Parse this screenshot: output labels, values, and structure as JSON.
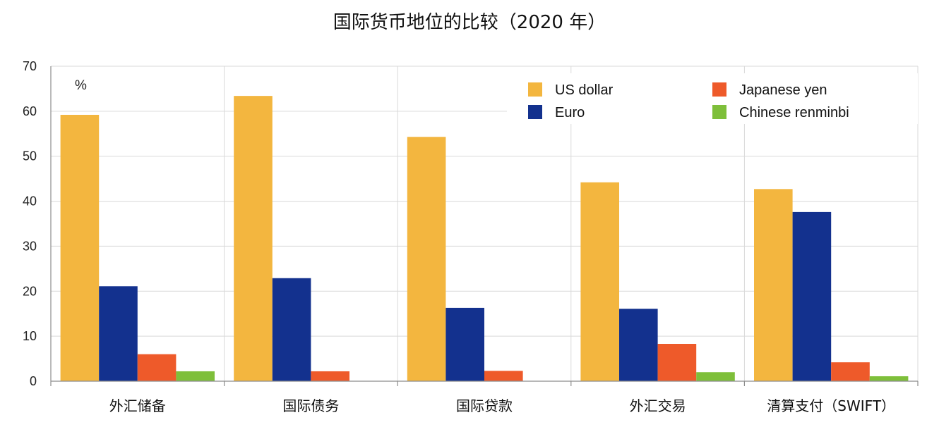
{
  "chart_data": {
    "type": "bar",
    "title": "国际货币地位的比较（2020 年）",
    "unit_label": "%",
    "categories": [
      "外汇储备",
      "国际债务",
      "国际贷款",
      "外汇交易",
      "清算支付（SWIFT）"
    ],
    "series": [
      {
        "name": "US dollar",
        "color": "#F3B63F",
        "values": [
          59.2,
          63.4,
          54.3,
          44.2,
          42.7
        ]
      },
      {
        "name": "Euro",
        "color": "#13318E",
        "values": [
          21.1,
          22.9,
          16.3,
          16.1,
          37.6
        ]
      },
      {
        "name": "Japanese yen",
        "color": "#EE5A2A",
        "values": [
          6.0,
          2.2,
          2.3,
          8.3,
          4.2
        ]
      },
      {
        "name": "Chinese renminbi",
        "color": "#7EBF3A",
        "values": [
          2.2,
          null,
          null,
          2.0,
          1.1
        ]
      }
    ],
    "xlabel": "",
    "ylabel": "",
    "ylim": [
      0,
      70
    ],
    "yticks": [
      0,
      10,
      20,
      30,
      40,
      50,
      60,
      70
    ],
    "grid": true,
    "legend_position": "top-right"
  }
}
